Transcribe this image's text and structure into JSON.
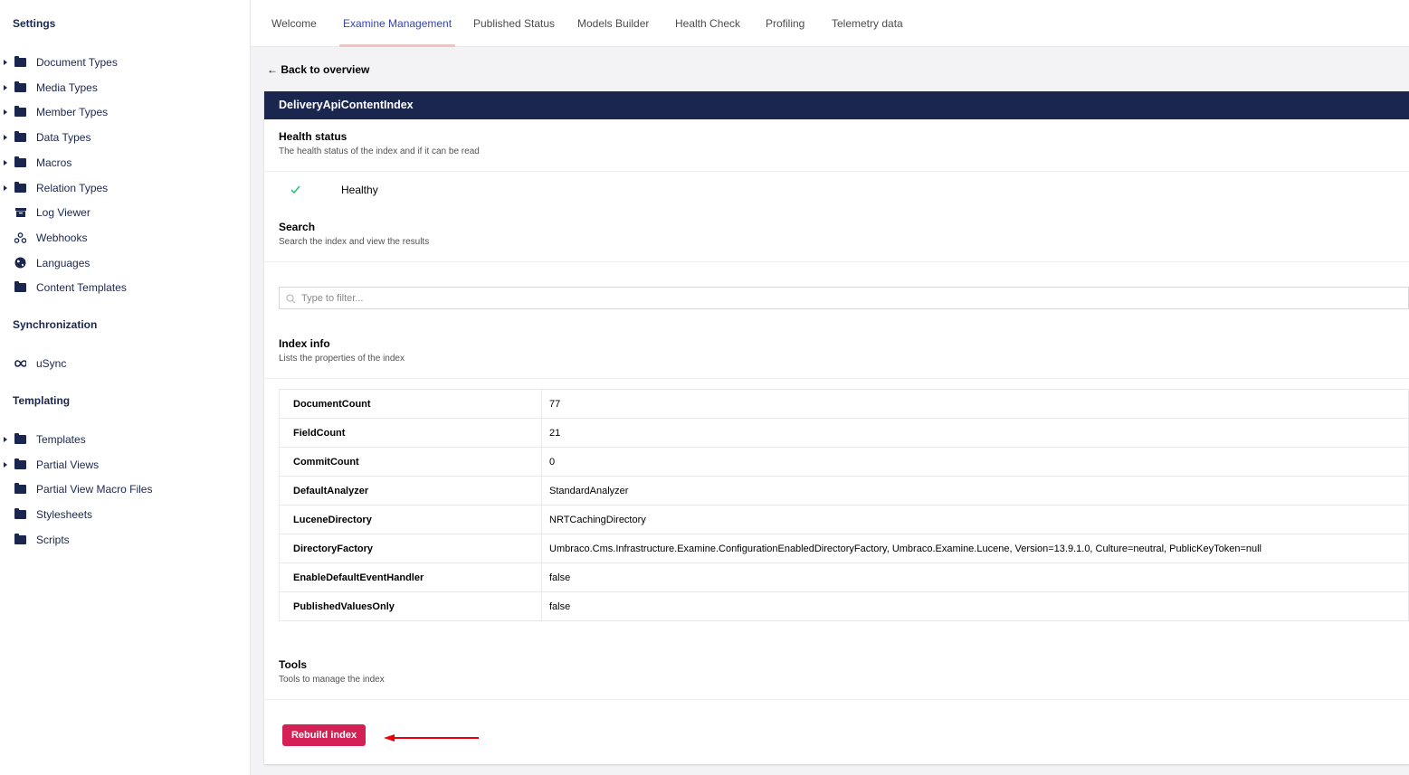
{
  "sidebar": {
    "settings_heading": "Settings",
    "settings_items": [
      {
        "label": "Document Types",
        "icon": "folder-icon",
        "expandable": true
      },
      {
        "label": "Media Types",
        "icon": "folder-icon",
        "expandable": true
      },
      {
        "label": "Member Types",
        "icon": "folder-icon",
        "expandable": true
      },
      {
        "label": "Data Types",
        "icon": "folder-icon",
        "expandable": true
      },
      {
        "label": "Macros",
        "icon": "folder-icon",
        "expandable": true
      },
      {
        "label": "Relation Types",
        "icon": "folder-icon",
        "expandable": true
      },
      {
        "label": "Log Viewer",
        "icon": "archive-icon",
        "expandable": false
      },
      {
        "label": "Webhooks",
        "icon": "webhook-icon",
        "expandable": false
      },
      {
        "label": "Languages",
        "icon": "globe-icon",
        "expandable": false
      },
      {
        "label": "Content Templates",
        "icon": "folder-icon",
        "expandable": false
      }
    ],
    "sync_heading": "Synchronization",
    "sync_items": [
      {
        "label": "uSync",
        "icon": "infinity-icon"
      }
    ],
    "templating_heading": "Templating",
    "templating_items": [
      {
        "label": "Templates",
        "icon": "folder-icon",
        "expandable": true
      },
      {
        "label": "Partial Views",
        "icon": "folder-icon",
        "expandable": true
      },
      {
        "label": "Partial View Macro Files",
        "icon": "folder-icon",
        "expandable": false
      },
      {
        "label": "Stylesheets",
        "icon": "folder-icon",
        "expandable": false
      },
      {
        "label": "Scripts",
        "icon": "folder-icon",
        "expandable": false
      }
    ]
  },
  "tabs": [
    {
      "label": "Welcome",
      "active": false
    },
    {
      "label": "Examine Management",
      "active": true
    },
    {
      "label": "Published Status",
      "active": false
    },
    {
      "label": "Models Builder",
      "active": false
    },
    {
      "label": "Health Check",
      "active": false
    },
    {
      "label": "Profiling",
      "active": false
    },
    {
      "label": "Telemetry data",
      "active": false
    }
  ],
  "back_link": "← Back to overview",
  "index": {
    "name": "DeliveryApiContentIndex",
    "health": {
      "title": "Health status",
      "desc": "The health status of the index and if it can be read",
      "status": "Healthy",
      "status_icon": "check-icon"
    },
    "search": {
      "title": "Search",
      "desc": "Search the index and view the results",
      "placeholder": "Type to filter..."
    },
    "info": {
      "title": "Index info",
      "desc": "Lists the properties of the index",
      "rows": [
        {
          "key": "DocumentCount",
          "value": "77"
        },
        {
          "key": "FieldCount",
          "value": "21"
        },
        {
          "key": "CommitCount",
          "value": "0"
        },
        {
          "key": "DefaultAnalyzer",
          "value": "StandardAnalyzer"
        },
        {
          "key": "LuceneDirectory",
          "value": "NRTCachingDirectory"
        },
        {
          "key": "DirectoryFactory",
          "value": "Umbraco.Cms.Infrastructure.Examine.ConfigurationEnabledDirectoryFactory, Umbraco.Examine.Lucene, Version=13.9.1.0, Culture=neutral, PublicKeyToken=null"
        },
        {
          "key": "EnableDefaultEventHandler",
          "value": "false"
        },
        {
          "key": "PublishedValuesOnly",
          "value": "false"
        }
      ]
    },
    "tools": {
      "title": "Tools",
      "desc": "Tools to manage the index",
      "rebuild_label": "Rebuild index"
    }
  },
  "colors": {
    "navy": "#1b264f",
    "accent": "#d42054",
    "annotation_arrow": "#e8000b",
    "healthy": "#2bc37c"
  }
}
